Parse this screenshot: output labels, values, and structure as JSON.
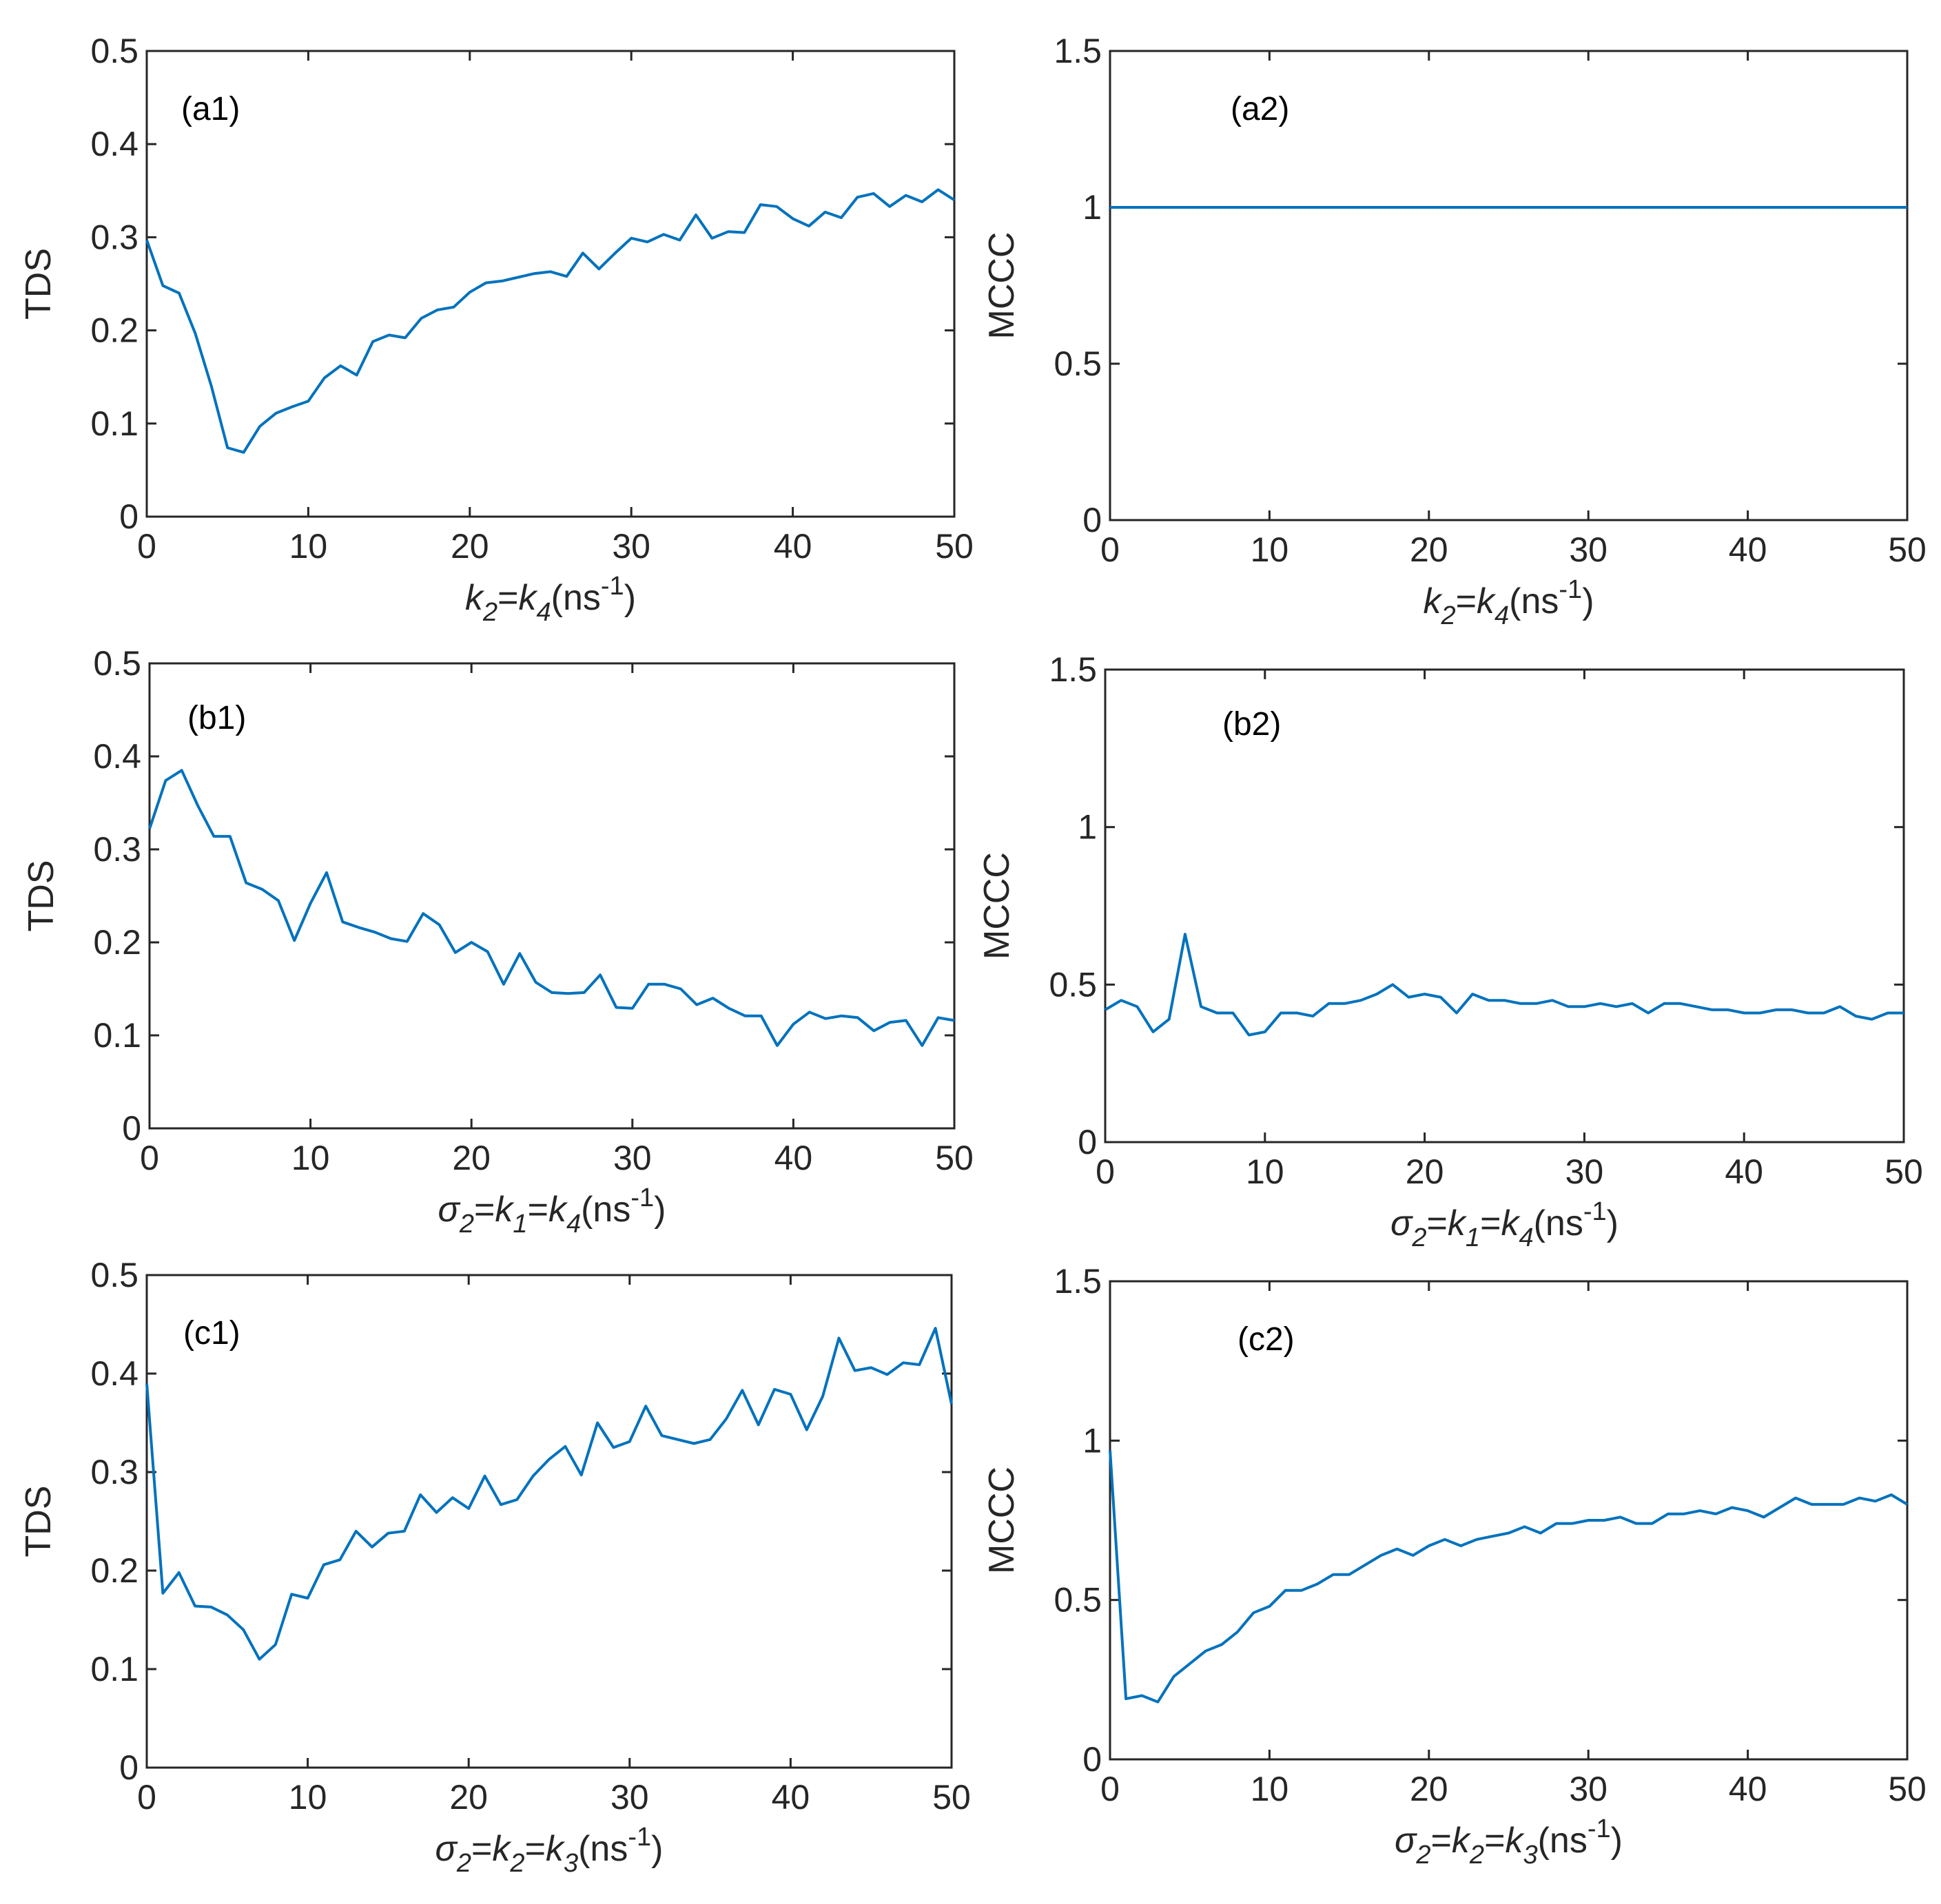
{
  "colors": {
    "line": "#0072BD",
    "axis": "#262626",
    "background": "#ffffff"
  },
  "chart_data": [
    {
      "id": "a1",
      "type": "line",
      "panel_label": "(a1)",
      "ylabel": "TDS",
      "xlabel": {
        "parts": [
          {
            "t": "k",
            "i": true
          },
          {
            "t": "2",
            "sub": true,
            "i": true
          },
          {
            "t": "=",
            "i": false
          },
          {
            "t": "k",
            "i": true
          },
          {
            "t": "4",
            "sub": true,
            "i": true
          },
          {
            "t": "(ns",
            "i": false
          },
          {
            "t": "-1",
            "sup": true,
            "i": false
          },
          {
            "t": ")",
            "i": false
          }
        ]
      },
      "xlim": [
        0,
        50
      ],
      "ylim": [
        0,
        0.5
      ],
      "xticks": [
        0,
        10,
        20,
        30,
        40,
        50
      ],
      "xtick_labels": [
        "0",
        "10",
        "20",
        "30",
        "40",
        "50"
      ],
      "yticks": [
        0,
        0.1,
        0.2,
        0.3,
        0.4,
        0.5
      ],
      "ytick_labels": [
        "0",
        "0.1",
        "0.2",
        "0.3",
        "0.4",
        "0.5"
      ],
      "series": [
        {
          "name": "TDS",
          "x_start": 0,
          "x_step": 1,
          "y": [
            0.297,
            0.248,
            0.24,
            0.197,
            0.14,
            0.074,
            0.069,
            0.097,
            0.111,
            0.118,
            0.124,
            0.149,
            0.162,
            0.152,
            0.188,
            0.195,
            0.192,
            0.213,
            0.222,
            0.225,
            0.241,
            0.251,
            0.253,
            0.257,
            0.261,
            0.263,
            0.258,
            0.283,
            0.266,
            0.283,
            0.299,
            0.295,
            0.303,
            0.297,
            0.324,
            0.299,
            0.306,
            0.305,
            0.335,
            0.333,
            0.32,
            0.312,
            0.327,
            0.321,
            0.343,
            0.347,
            0.333,
            0.345,
            0.338,
            0.351,
            0.34
          ]
        }
      ]
    },
    {
      "id": "a2",
      "type": "line",
      "panel_label": "(a2)",
      "ylabel": "MCCC",
      "xlabel": {
        "parts": [
          {
            "t": "k",
            "i": true
          },
          {
            "t": "2",
            "sub": true,
            "i": true
          },
          {
            "t": "=",
            "i": false
          },
          {
            "t": "k",
            "i": true
          },
          {
            "t": "4",
            "sub": true,
            "i": true
          },
          {
            "t": "(ns",
            "i": false
          },
          {
            "t": "-1",
            "sup": true,
            "i": false
          },
          {
            "t": ")",
            "i": false
          }
        ]
      },
      "xlim": [
        0,
        50
      ],
      "ylim": [
        0,
        1.5
      ],
      "xticks": [
        0,
        10,
        20,
        30,
        40,
        50
      ],
      "xtick_labels": [
        "0",
        "10",
        "20",
        "30",
        "40",
        "50"
      ],
      "yticks": [
        0,
        0.5,
        1,
        1.5
      ],
      "ytick_labels": [
        "0",
        "0.5",
        "1",
        "1.5"
      ],
      "series": [
        {
          "name": "MCCC",
          "x_start": 0,
          "x_step": 50,
          "y": [
            1.0,
            1.0
          ]
        }
      ]
    },
    {
      "id": "b1",
      "type": "line",
      "panel_label": "(b1)",
      "ylabel": "TDS",
      "xlabel": {
        "parts": [
          {
            "t": "σ",
            "i": true
          },
          {
            "t": "2",
            "sub": true,
            "i": true
          },
          {
            "t": "=",
            "i": false
          },
          {
            "t": "k",
            "i": true
          },
          {
            "t": "1",
            "sub": true,
            "i": true
          },
          {
            "t": "=",
            "i": false
          },
          {
            "t": "k",
            "i": true
          },
          {
            "t": "4",
            "sub": true,
            "i": true
          },
          {
            "t": "(ns",
            "i": false
          },
          {
            "t": "-1",
            "sup": true,
            "i": false
          },
          {
            "t": ")",
            "i": false
          }
        ]
      },
      "xlim": [
        0,
        50
      ],
      "ylim": [
        0,
        0.5
      ],
      "xticks": [
        0,
        10,
        20,
        30,
        40,
        50
      ],
      "xtick_labels": [
        "0",
        "10",
        "20",
        "30",
        "40",
        "50"
      ],
      "yticks": [
        0,
        0.1,
        0.2,
        0.3,
        0.4,
        0.5
      ],
      "ytick_labels": [
        "0",
        "0.1",
        "0.2",
        "0.3",
        "0.4",
        "0.5"
      ],
      "series": [
        {
          "name": "TDS",
          "x_start": 0,
          "x_step": 1,
          "y": [
            0.322,
            0.374,
            0.385,
            0.347,
            0.314,
            0.314,
            0.264,
            0.257,
            0.245,
            0.202,
            0.242,
            0.275,
            0.222,
            0.216,
            0.211,
            0.204,
            0.201,
            0.231,
            0.219,
            0.189,
            0.2,
            0.19,
            0.155,
            0.188,
            0.157,
            0.146,
            0.145,
            0.146,
            0.165,
            0.13,
            0.129,
            0.155,
            0.155,
            0.15,
            0.133,
            0.14,
            0.129,
            0.121,
            0.121,
            0.089,
            0.112,
            0.125,
            0.118,
            0.121,
            0.119,
            0.105,
            0.114,
            0.116,
            0.089,
            0.119,
            0.116
          ]
        }
      ]
    },
    {
      "id": "b2",
      "type": "line",
      "panel_label": "(b2)",
      "ylabel": "MCCC",
      "xlabel": {
        "parts": [
          {
            "t": "σ",
            "i": true
          },
          {
            "t": "2",
            "sub": true,
            "i": true
          },
          {
            "t": "=",
            "i": false
          },
          {
            "t": "k",
            "i": true
          },
          {
            "t": "1",
            "sub": true,
            "i": true
          },
          {
            "t": "=",
            "i": false
          },
          {
            "t": "k",
            "i": true
          },
          {
            "t": "4",
            "sub": true,
            "i": true
          },
          {
            "t": "(ns",
            "i": false
          },
          {
            "t": "-1",
            "sup": true,
            "i": false
          },
          {
            "t": ")",
            "i": false
          }
        ]
      },
      "xlim": [
        0,
        50
      ],
      "ylim": [
        0,
        1.5
      ],
      "xticks": [
        0,
        10,
        20,
        30,
        40,
        50
      ],
      "xtick_labels": [
        "0",
        "10",
        "20",
        "30",
        "40",
        "50"
      ],
      "yticks": [
        0,
        0.5,
        1,
        1.5
      ],
      "ytick_labels": [
        "0",
        "0.5",
        "1",
        "1.5"
      ],
      "series": [
        {
          "name": "MCCC",
          "x_start": 0,
          "x_step": 1,
          "y": [
            0.42,
            0.45,
            0.43,
            0.35,
            0.39,
            0.66,
            0.43,
            0.41,
            0.41,
            0.34,
            0.35,
            0.41,
            0.41,
            0.4,
            0.44,
            0.44,
            0.45,
            0.47,
            0.5,
            0.46,
            0.47,
            0.46,
            0.41,
            0.47,
            0.45,
            0.45,
            0.44,
            0.44,
            0.45,
            0.43,
            0.43,
            0.44,
            0.43,
            0.44,
            0.41,
            0.44,
            0.44,
            0.43,
            0.42,
            0.42,
            0.41,
            0.41,
            0.42,
            0.42,
            0.41,
            0.41,
            0.43,
            0.4,
            0.39,
            0.41,
            0.41
          ]
        }
      ]
    },
    {
      "id": "c1",
      "type": "line",
      "panel_label": "(c1)",
      "ylabel": "TDS",
      "xlabel": {
        "parts": [
          {
            "t": "σ",
            "i": true
          },
          {
            "t": "2",
            "sub": true,
            "i": true
          },
          {
            "t": "=",
            "i": false
          },
          {
            "t": "k",
            "i": true
          },
          {
            "t": "2",
            "sub": true,
            "i": true
          },
          {
            "t": "=",
            "i": false
          },
          {
            "t": "k",
            "i": true
          },
          {
            "t": "3",
            "sub": true,
            "i": true
          },
          {
            "t": "(ns",
            "i": false
          },
          {
            "t": "-1",
            "sup": true,
            "i": false
          },
          {
            "t": ")",
            "i": false
          }
        ]
      },
      "xlim": [
        0,
        50
      ],
      "ylim": [
        0,
        0.5
      ],
      "xticks": [
        0,
        10,
        20,
        30,
        40,
        50
      ],
      "xtick_labels": [
        "0",
        "10",
        "20",
        "30",
        "40",
        "50"
      ],
      "yticks": [
        0,
        0.1,
        0.2,
        0.3,
        0.4,
        0.5
      ],
      "ytick_labels": [
        "0",
        "0.1",
        "0.2",
        "0.3",
        "0.4",
        "0.5"
      ],
      "series": [
        {
          "name": "TDS",
          "x_start": 0,
          "x_step": 1,
          "y": [
            0.39,
            0.177,
            0.198,
            0.164,
            0.163,
            0.155,
            0.14,
            0.11,
            0.125,
            0.176,
            0.172,
            0.206,
            0.211,
            0.24,
            0.224,
            0.238,
            0.24,
            0.277,
            0.259,
            0.274,
            0.263,
            0.296,
            0.267,
            0.272,
            0.296,
            0.313,
            0.326,
            0.297,
            0.35,
            0.325,
            0.331,
            0.367,
            0.337,
            0.333,
            0.329,
            0.333,
            0.354,
            0.383,
            0.348,
            0.384,
            0.379,
            0.343,
            0.377,
            0.436,
            0.403,
            0.406,
            0.399,
            0.411,
            0.409,
            0.446,
            0.369
          ]
        }
      ]
    },
    {
      "id": "c2",
      "type": "line",
      "panel_label": "(c2)",
      "ylabel": "MCCC",
      "xlabel": {
        "parts": [
          {
            "t": "σ",
            "i": true
          },
          {
            "t": "2",
            "sub": true,
            "i": true
          },
          {
            "t": "=",
            "i": false
          },
          {
            "t": "k",
            "i": true
          },
          {
            "t": "2",
            "sub": true,
            "i": true
          },
          {
            "t": "=",
            "i": false
          },
          {
            "t": "k",
            "i": true
          },
          {
            "t": "3",
            "sub": true,
            "i": true
          },
          {
            "t": "(ns",
            "i": false
          },
          {
            "t": "-1",
            "sup": true,
            "i": false
          },
          {
            "t": ")",
            "i": false
          }
        ]
      },
      "xlim": [
        0,
        50
      ],
      "ylim": [
        0,
        1.5
      ],
      "xticks": [
        0,
        10,
        20,
        30,
        40,
        50
      ],
      "xtick_labels": [
        "0",
        "10",
        "20",
        "30",
        "40",
        "50"
      ],
      "yticks": [
        0,
        0.5,
        1,
        1.5
      ],
      "ytick_labels": [
        "0",
        "0.5",
        "1",
        "1.5"
      ],
      "series": [
        {
          "name": "MCCC",
          "x_start": 0,
          "x_step": 1,
          "y": [
            0.97,
            0.19,
            0.2,
            0.18,
            0.26,
            0.3,
            0.34,
            0.36,
            0.4,
            0.46,
            0.48,
            0.53,
            0.53,
            0.55,
            0.58,
            0.58,
            0.61,
            0.64,
            0.66,
            0.64,
            0.67,
            0.69,
            0.67,
            0.69,
            0.7,
            0.71,
            0.73,
            0.71,
            0.74,
            0.74,
            0.75,
            0.75,
            0.76,
            0.74,
            0.74,
            0.77,
            0.77,
            0.78,
            0.77,
            0.79,
            0.78,
            0.76,
            0.79,
            0.82,
            0.8,
            0.8,
            0.8,
            0.82,
            0.81,
            0.83,
            0.8
          ]
        }
      ]
    }
  ]
}
